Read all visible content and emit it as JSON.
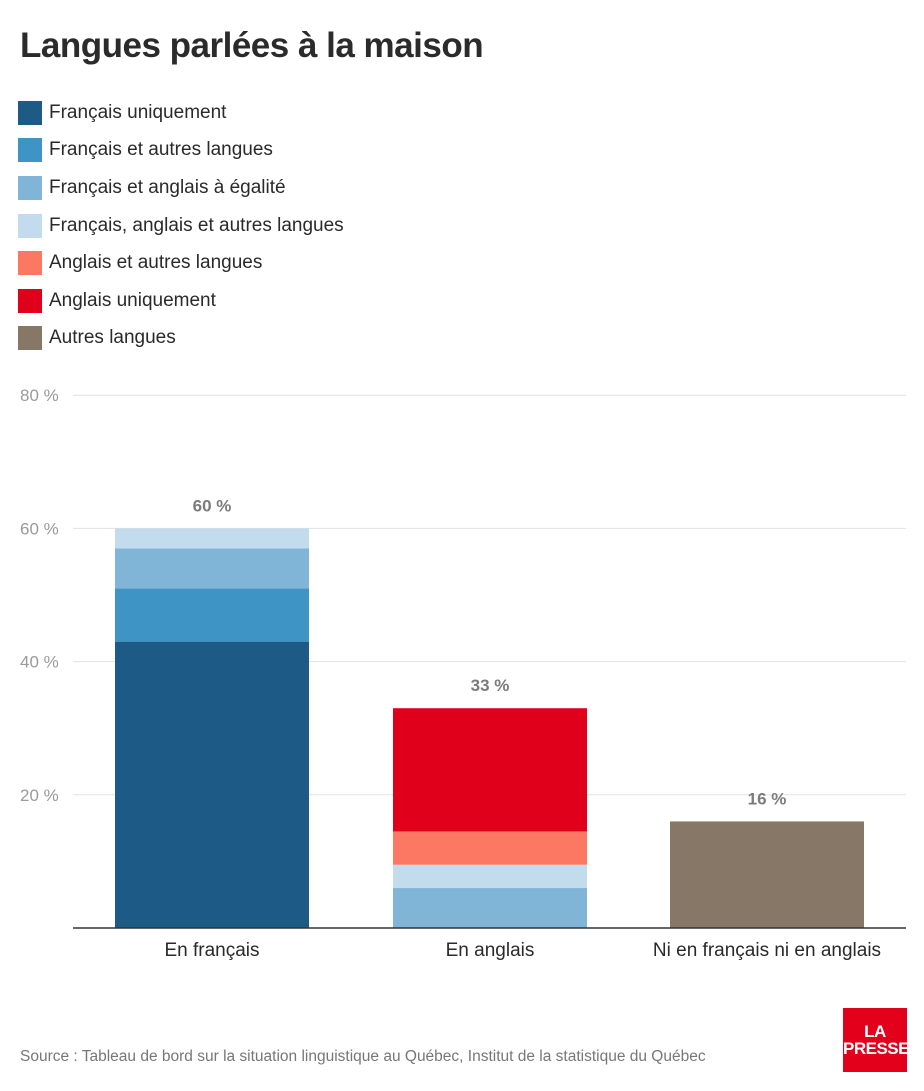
{
  "title": "Langues parlées à la maison",
  "legend": [
    {
      "label": "Français uniquement",
      "color": "#1d5a85"
    },
    {
      "label": "Français et autres langues",
      "color": "#3f94c6"
    },
    {
      "label": "Français et anglais à égalité",
      "color": "#80b5d7"
    },
    {
      "label": "Français, anglais et autres langues",
      "color": "#c2dcee"
    },
    {
      "label": "Anglais et autres langues",
      "color": "#fd7863"
    },
    {
      "label": "Anglais uniquement",
      "color": "#e0001b"
    },
    {
      "label": "Autres langues",
      "color": "#867767"
    }
  ],
  "chart_data": {
    "type": "bar",
    "stacked": true,
    "title": "Langues parlées à la maison",
    "categories": [
      "En français",
      "En anglais",
      "Ni en français ni en anglais"
    ],
    "totals": [
      60,
      33,
      16
    ],
    "total_labels": [
      "60 %",
      "33 %",
      "16 %"
    ],
    "series": [
      {
        "name": "Français uniquement",
        "color": "#1d5a85",
        "values": [
          43,
          0,
          0
        ]
      },
      {
        "name": "Français et autres langues",
        "color": "#3f94c6",
        "values": [
          8,
          0,
          0
        ]
      },
      {
        "name": "Français et anglais à égalité",
        "color": "#80b5d7",
        "values": [
          6,
          6,
          0
        ]
      },
      {
        "name": "Français, anglais et autres langues",
        "color": "#c2dcee",
        "values": [
          3,
          3.5,
          0
        ]
      },
      {
        "name": "Anglais et autres langues",
        "color": "#fd7863",
        "values": [
          0,
          5,
          0
        ]
      },
      {
        "name": "Anglais uniquement",
        "color": "#e0001b",
        "values": [
          0,
          18.5,
          0
        ]
      },
      {
        "name": "Autres langues",
        "color": "#867767",
        "values": [
          0,
          0,
          16
        ]
      }
    ],
    "yticks": [
      20,
      40,
      60,
      80
    ],
    "ytick_labels": [
      "20 %",
      "40 %",
      "60 %",
      "80 %"
    ],
    "ylim": [
      0,
      80
    ],
    "xlabel": "",
    "ylabel": "",
    "grid": true
  },
  "source": "Source : Tableau de bord sur la situation linguistique au Québec, Institut de la statistique du Québec",
  "logo": {
    "line1": "LA",
    "line2": "PRESSE",
    "color": "#e2001a"
  }
}
